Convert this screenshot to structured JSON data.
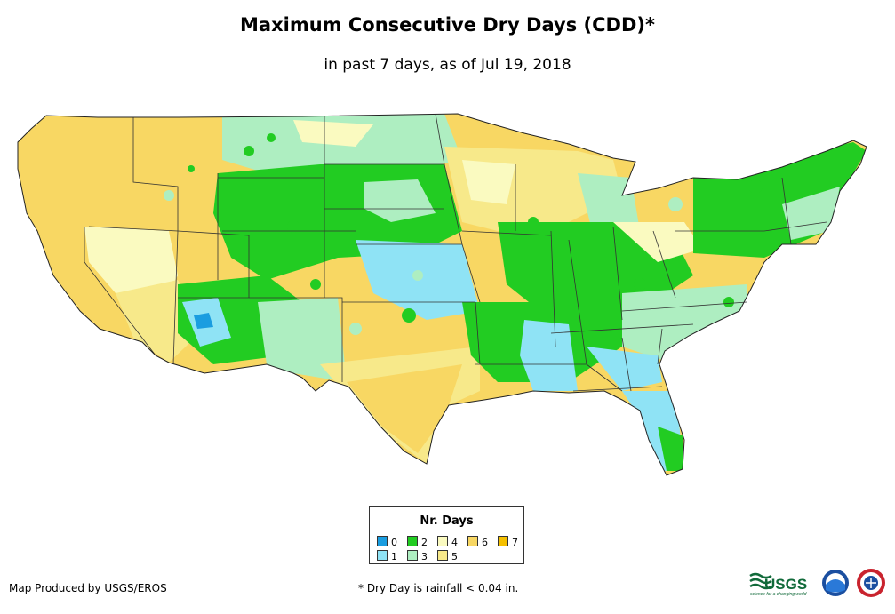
{
  "title": "Maximum Consecutive Dry Days (CDD)*",
  "subtitle": "in past 7 days, as of Jul 19, 2018",
  "legend": {
    "title": "Nr. Days",
    "items": [
      {
        "label": "0",
        "color": "#1a9de0"
      },
      {
        "label": "1",
        "color": "#8fe3f5"
      },
      {
        "label": "2",
        "color": "#22cc22"
      },
      {
        "label": "3",
        "color": "#aeeec1"
      },
      {
        "label": "4",
        "color": "#fafac0"
      },
      {
        "label": "5",
        "color": "#f7e98a"
      },
      {
        "label": "6",
        "color": "#f8d763"
      },
      {
        "label": "7",
        "color": "#f5c000"
      }
    ]
  },
  "credit": "Map Produced by USGS/EROS",
  "footnote": "* Dry Day is rainfall < 0.04 in.",
  "logos": {
    "usgs": "USGS",
    "usgs_tagline": "science for a changing world"
  }
}
